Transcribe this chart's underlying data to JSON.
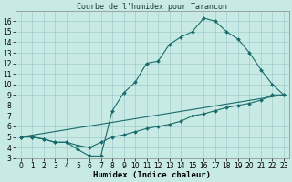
{
  "title": "Courbe de l'humidex pour Tarancon",
  "xlabel": "Humidex (Indice chaleur)",
  "xlim": [
    -0.5,
    23.5
  ],
  "ylim": [
    3,
    17
  ],
  "xticks": [
    0,
    1,
    2,
    3,
    4,
    5,
    6,
    7,
    8,
    9,
    10,
    11,
    12,
    13,
    14,
    15,
    16,
    17,
    18,
    19,
    20,
    21,
    22,
    23
  ],
  "yticks": [
    3,
    4,
    5,
    6,
    7,
    8,
    9,
    10,
    11,
    12,
    13,
    14,
    15,
    16
  ],
  "bg_color": "#c8eae4",
  "grid_color": "#a0cccc",
  "line_color": "#1a6b6b",
  "line1_x": [
    0,
    1,
    2,
    3,
    4,
    5,
    6,
    7,
    8,
    9,
    10,
    11,
    12,
    13,
    14,
    15,
    16,
    17,
    18,
    19,
    20,
    21,
    22,
    23
  ],
  "line1_y": [
    5,
    5,
    4.8,
    4.5,
    4.5,
    3.8,
    3.2,
    3.2,
    7.5,
    9.2,
    10.2,
    12.0,
    12.2,
    13.8,
    14.5,
    15.0,
    16.3,
    16.0,
    15.0,
    14.3,
    13.0,
    11.4,
    10.0,
    9.0
  ],
  "line2_x": [
    0,
    1,
    2,
    3,
    4,
    5,
    6,
    7,
    8,
    9,
    10,
    11,
    12,
    13,
    14,
    15,
    16,
    17,
    18,
    19,
    20,
    21,
    22,
    23
  ],
  "line2_y": [
    5,
    5,
    4.8,
    4.5,
    4.5,
    4.2,
    4.0,
    4.5,
    5.0,
    5.2,
    5.5,
    5.8,
    6.0,
    6.2,
    6.5,
    7.0,
    7.2,
    7.5,
    7.8,
    8.0,
    8.2,
    8.5,
    9.0,
    9.0
  ],
  "line3_x": [
    0,
    23
  ],
  "line3_y": [
    5,
    9.0
  ],
  "tick_fontsize": 5.5,
  "xlabel_fontsize": 6.5,
  "title_fontsize": 6.0
}
